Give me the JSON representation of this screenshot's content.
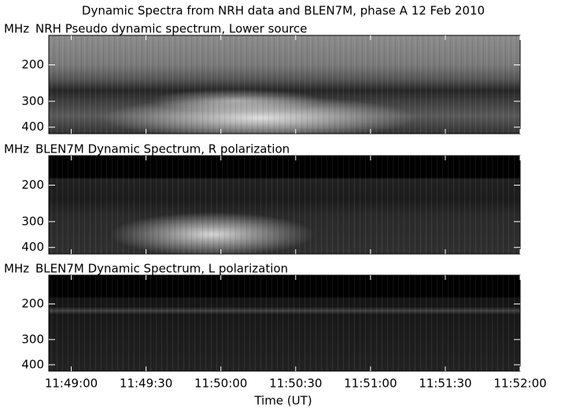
{
  "title": "Dynamic Spectra from NRH data and BLEN7M, phase A 12 Feb 2010",
  "x_label": "Time (UT)",
  "xlim": [
    42531,
    42720
  ],
  "xticks": [
    {
      "value": 42540,
      "label": "11:49:00"
    },
    {
      "value": 42570,
      "label": "11:49:30"
    },
    {
      "value": 42600,
      "label": "11:50:00"
    },
    {
      "value": 42630,
      "label": "11:50:30"
    },
    {
      "value": 42660,
      "label": "11:51:00"
    },
    {
      "value": 42690,
      "label": "11:51:30"
    },
    {
      "value": 42720,
      "label": "11:52:00"
    }
  ],
  "chart_data": [
    {
      "type": "heatmap",
      "title": "NRH Pseudo dynamic spectrum, Lower source",
      "y_label": "MHz",
      "log_y": true,
      "ylim": [
        430,
        144
      ],
      "yticks": [
        200,
        300,
        400
      ]
    },
    {
      "type": "heatmap",
      "title": "BLEN7M Dynamic Spectrum, R polarization",
      "y_label": "MHz",
      "log_y": true,
      "ylim": [
        430,
        144
      ],
      "yticks": [
        200,
        300,
        400
      ]
    },
    {
      "type": "heatmap",
      "title": "BLEN7M Dynamic Spectrum, L polarization",
      "y_label": "MHz",
      "log_y": true,
      "ylim": [
        430,
        144
      ],
      "yticks": [
        200,
        300,
        400
      ]
    }
  ]
}
